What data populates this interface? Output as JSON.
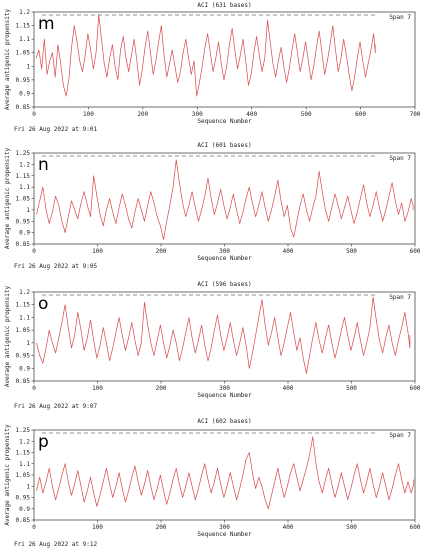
{
  "chart_data": [
    {
      "type": "line",
      "panel_label": "m",
      "title": "ACI  (631 bases)",
      "xlabel": "Sequence Number",
      "ylabel": "Average antigenic propensity",
      "span": "Span 7",
      "xlim": [
        0,
        700
      ],
      "ylim": [
        0.85,
        1.2
      ],
      "xticks": [
        0,
        100,
        200,
        300,
        400,
        500,
        600,
        700
      ],
      "yticks": [
        0.85,
        0.9,
        0.95,
        1,
        1.05,
        1.1,
        1.15,
        1.2
      ],
      "seq_length": 631,
      "line_color": "#d94848",
      "footer": "Fri 26 Aug 2022 at 9:01",
      "x_step": 5,
      "y": [
        1.03,
        1.06,
        0.99,
        1.1,
        0.97,
        1.02,
        1.05,
        0.96,
        1.08,
        1.01,
        0.93,
        0.89,
        0.95,
        1.07,
        1.15,
        1.09,
        1.02,
        0.98,
        1.04,
        1.12,
        1.06,
        0.99,
        1.05,
        1.19,
        1.1,
        1.01,
        0.96,
        1.03,
        1.08,
        1.0,
        0.95,
        1.06,
        1.11,
        1.03,
        0.98,
        1.04,
        1.1,
        1.02,
        0.93,
        0.99,
        1.07,
        1.13,
        1.05,
        0.97,
        1.02,
        1.09,
        1.15,
        1.04,
        0.96,
        1.01,
        1.06,
        1.0,
        0.94,
        0.98,
        1.05,
        1.1,
        1.03,
        0.97,
        1.02,
        0.89,
        0.94,
        1.0,
        1.07,
        1.12,
        1.05,
        0.98,
        1.03,
        1.09,
        1.01,
        0.95,
        1.0,
        1.08,
        1.14,
        1.06,
        0.99,
        1.04,
        1.1,
        1.02,
        0.93,
        0.97,
        1.05,
        1.11,
        1.04,
        0.98,
        1.03,
        1.17,
        1.09,
        1.01,
        0.96,
        1.02,
        1.07,
        1.0,
        0.94,
        0.99,
        1.06,
        1.12,
        1.05,
        0.98,
        1.03,
        1.09,
        1.02,
        0.95,
        1.0,
        1.07,
        1.13,
        1.05,
        0.97,
        1.02,
        1.08,
        1.15,
        1.06,
        0.98,
        1.03,
        1.1,
        1.04,
        0.97,
        0.91,
        0.96,
        1.03,
        1.09,
        1.02,
        0.96,
        1.01,
        1.06,
        1.12,
        1.05,
        1.08
      ]
    },
    {
      "type": "line",
      "panel_label": "n",
      "title": "ACI  (601 bases)",
      "xlabel": "Sequence Number",
      "ylabel": "Average antigenic propensity",
      "span": "Span 7",
      "xlim": [
        0,
        600
      ],
      "ylim": [
        0.85,
        1.25
      ],
      "xticks": [
        0,
        100,
        200,
        300,
        400,
        500,
        600
      ],
      "yticks": [
        0.85,
        0.9,
        0.95,
        1,
        1.05,
        1.1,
        1.15,
        1.2,
        1.25
      ],
      "seq_length": 601,
      "line_color": "#d94848",
      "footer": "Fri 26 Aug 2022 at 9:05",
      "x_step": 5,
      "y": [
        0.98,
        1.04,
        1.1,
        1.0,
        0.94,
        0.99,
        1.06,
        1.02,
        0.95,
        0.9,
        0.97,
        1.04,
        1.0,
        0.96,
        1.03,
        1.08,
        1.02,
        0.97,
        1.15,
        1.06,
        0.98,
        0.93,
        1.0,
        1.05,
        0.99,
        0.94,
        1.01,
        1.07,
        1.02,
        0.96,
        0.92,
        0.99,
        1.05,
        1.0,
        0.95,
        1.02,
        1.08,
        1.03,
        0.97,
        0.93,
        0.87,
        0.95,
        1.02,
        1.1,
        1.22,
        1.12,
        1.03,
        0.97,
        1.02,
        1.08,
        1.01,
        0.95,
        1.0,
        1.06,
        1.14,
        1.05,
        0.98,
        1.03,
        1.09,
        1.02,
        0.96,
        1.01,
        1.07,
        1.0,
        0.94,
        0.99,
        1.05,
        1.1,
        1.03,
        0.97,
        1.02,
        1.08,
        1.01,
        0.95,
        1.0,
        1.06,
        1.13,
        1.04,
        0.97,
        1.02,
        0.92,
        0.88,
        0.95,
        1.02,
        1.07,
        1.0,
        0.95,
        1.01,
        1.06,
        1.17,
        1.08,
        1.0,
        0.95,
        1.01,
        1.07,
        1.02,
        0.96,
        1.01,
        1.06,
        1.0,
        0.94,
        0.99,
        1.05,
        1.11,
        1.03,
        0.97,
        1.02,
        1.08,
        1.01,
        0.95,
        1.0,
        1.06,
        1.12,
        1.04,
        0.98,
        1.03,
        0.95,
        0.99,
        1.05,
        1.02,
        1.0
      ]
    },
    {
      "type": "line",
      "panel_label": "o",
      "title": "ACI  (596 bases)",
      "xlabel": "Sequence Number",
      "ylabel": "Average antigenic propensity",
      "span": "Span 7",
      "xlim": [
        0,
        600
      ],
      "ylim": [
        0.85,
        1.2
      ],
      "xticks": [
        0,
        100,
        200,
        300,
        400,
        500,
        600
      ],
      "yticks": [
        0.85,
        0.9,
        0.95,
        1,
        1.05,
        1.1,
        1.15,
        1.2
      ],
      "seq_length": 596,
      "line_color": "#d94848",
      "footer": "Fri 26 Aug 2022 at 9:07",
      "x_step": 5,
      "y": [
        1.0,
        0.95,
        0.92,
        0.98,
        1.05,
        1.0,
        0.96,
        1.02,
        1.08,
        1.15,
        1.06,
        0.98,
        1.03,
        1.12,
        1.05,
        0.97,
        1.02,
        1.09,
        1.01,
        0.94,
        0.99,
        1.06,
        1.0,
        0.93,
        0.98,
        1.04,
        1.1,
        1.03,
        0.97,
        1.02,
        1.08,
        1.01,
        0.95,
        1.0,
        1.16,
        1.07,
        1.0,
        0.95,
        1.01,
        1.07,
        1.0,
        0.94,
        0.99,
        1.05,
        1.0,
        0.93,
        0.98,
        1.04,
        1.1,
        1.02,
        0.96,
        1.01,
        1.07,
        0.99,
        0.93,
        0.98,
        1.05,
        1.11,
        1.03,
        0.97,
        1.02,
        1.08,
        1.01,
        0.95,
        1.0,
        1.06,
        0.99,
        0.9,
        0.96,
        1.03,
        1.1,
        1.17,
        1.07,
        0.99,
        1.04,
        1.1,
        1.02,
        0.95,
        1.0,
        1.06,
        1.12,
        1.04,
        0.97,
        1.02,
        0.94,
        0.88,
        0.95,
        1.02,
        1.08,
        1.01,
        0.96,
        1.02,
        1.07,
        1.0,
        0.94,
        0.99,
        1.05,
        1.1,
        1.03,
        0.97,
        1.02,
        1.08,
        1.01,
        0.95,
        1.0,
        1.06,
        1.18,
        1.09,
        1.01,
        0.96,
        1.02,
        1.07,
        1.0,
        0.95,
        1.01,
        1.06,
        1.12,
        1.04,
        0.98,
        1.03
      ]
    },
    {
      "type": "line",
      "panel_label": "p",
      "title": "ACI  (602 bases)",
      "xlabel": "Sequence Number",
      "ylabel": "Average antigenic propensity",
      "span": "Span 7",
      "xlim": [
        0,
        600
      ],
      "ylim": [
        0.85,
        1.25
      ],
      "xticks": [
        0,
        100,
        200,
        300,
        400,
        500,
        600
      ],
      "yticks": [
        0.85,
        0.9,
        0.95,
        1,
        1.05,
        1.1,
        1.15,
        1.2,
        1.25
      ],
      "seq_length": 602,
      "line_color": "#d94848",
      "footer": "Fri 26 Aug 2022 at 9:12",
      "x_step": 5,
      "y": [
        0.98,
        1.04,
        0.97,
        1.02,
        1.08,
        1.0,
        0.94,
        0.99,
        1.05,
        1.1,
        1.02,
        0.96,
        1.01,
        1.07,
        1.0,
        0.93,
        0.98,
        1.04,
        0.97,
        0.91,
        0.96,
        1.02,
        1.08,
        1.01,
        0.95,
        1.0,
        1.06,
        0.99,
        0.93,
        0.98,
        1.04,
        1.09,
        1.02,
        0.96,
        1.01,
        1.07,
        1.0,
        0.94,
        0.99,
        1.05,
        0.98,
        0.92,
        0.97,
        1.03,
        1.08,
        1.01,
        0.95,
        1.0,
        1.06,
        1.0,
        0.94,
        0.99,
        1.05,
        1.1,
        1.03,
        0.97,
        1.02,
        1.08,
        1.01,
        0.95,
        1.0,
        1.06,
        1.0,
        0.94,
        0.99,
        1.05,
        1.12,
        1.15,
        1.06,
        0.99,
        1.04,
        1.0,
        0.94,
        0.9,
        0.96,
        1.02,
        1.08,
        1.01,
        0.95,
        1.0,
        1.06,
        1.1,
        1.04,
        0.98,
        1.03,
        1.08,
        1.14,
        1.22,
        1.1,
        1.02,
        0.97,
        1.03,
        1.08,
        1.01,
        0.95,
        1.0,
        1.06,
        1.0,
        0.94,
        0.99,
        1.05,
        1.1,
        1.03,
        0.97,
        1.02,
        1.08,
        1.01,
        0.95,
        1.0,
        1.06,
        1.0,
        0.94,
        0.99,
        1.05,
        1.1,
        1.03,
        0.97,
        1.02,
        0.97,
        1.01,
        1.03
      ]
    }
  ]
}
